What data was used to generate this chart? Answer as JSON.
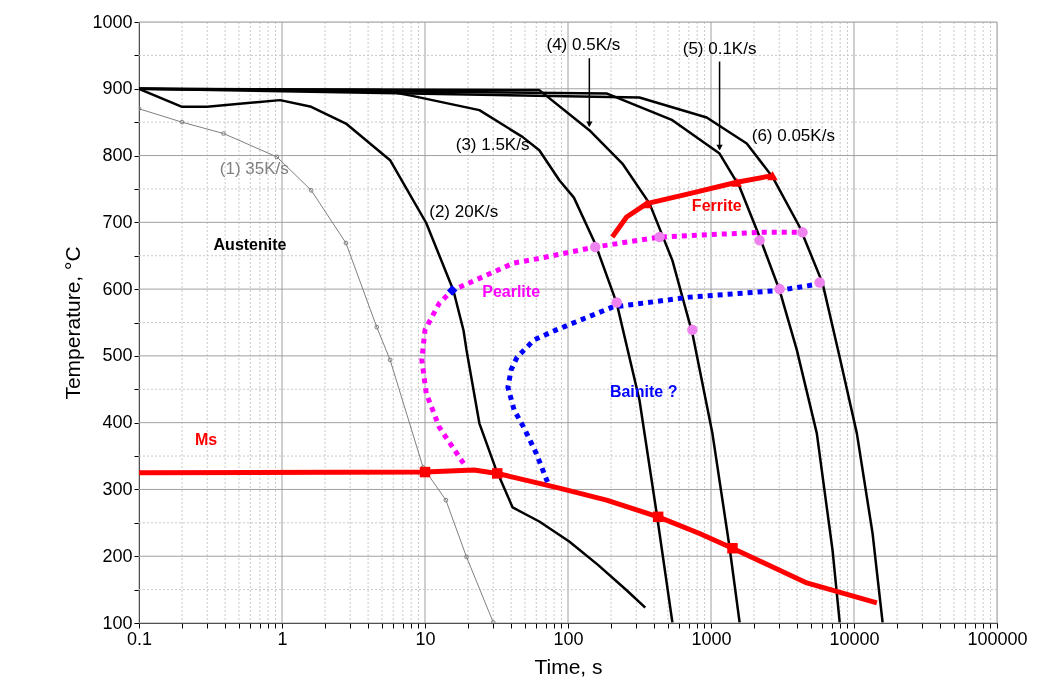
{
  "chart_data": {
    "type": "line",
    "xlabel": "Time, s",
    "ylabel": "Temperature, °C",
    "log": "x",
    "grid": true,
    "xlim": [
      0.1,
      100000
    ],
    "ylim": [
      100,
      1000
    ],
    "xticks": [
      0.1,
      {
        "value": 0.2,
        "label": null
      },
      {
        "value": 0.3,
        "label": null
      },
      {
        "value": 0.4,
        "label": null
      },
      {
        "value": 0.5,
        "label": null
      },
      {
        "value": 0.6,
        "label": null
      },
      {
        "value": 0.7,
        "label": null
      },
      {
        "value": 0.8,
        "label": null
      },
      {
        "value": 0.9,
        "label": null
      },
      1,
      {
        "value": 2,
        "label": null
      },
      {
        "value": 3,
        "label": null
      },
      {
        "value": 4,
        "label": null
      },
      {
        "value": 5,
        "label": null
      },
      {
        "value": 6,
        "label": null
      },
      {
        "value": 7,
        "label": null
      },
      {
        "value": 8,
        "label": null
      },
      {
        "value": 9,
        "label": null
      },
      10,
      {
        "value": 20,
        "label": null
      },
      {
        "value": 30,
        "label": null
      },
      {
        "value": 40,
        "label": null
      },
      {
        "value": 50,
        "label": null
      },
      {
        "value": 60,
        "label": null
      },
      {
        "value": 70,
        "label": null
      },
      {
        "value": 80,
        "label": null
      },
      {
        "value": 90,
        "label": null
      },
      100,
      {
        "value": 200,
        "label": null
      },
      {
        "value": 300,
        "label": null
      },
      {
        "value": 400,
        "label": null
      },
      {
        "value": 500,
        "label": null
      },
      {
        "value": 600,
        "label": null
      },
      {
        "value": 700,
        "label": null
      },
      {
        "value": 800,
        "label": null
      },
      {
        "value": 900,
        "label": null
      },
      1000,
      {
        "value": 2000,
        "label": null
      },
      {
        "value": 3000,
        "label": null
      },
      {
        "value": 4000,
        "label": null
      },
      {
        "value": 5000,
        "label": null
      },
      {
        "value": 6000,
        "label": null
      },
      {
        "value": 7000,
        "label": null
      },
      {
        "value": 8000,
        "label": null
      },
      {
        "value": 9000,
        "label": null
      },
      10000,
      {
        "value": 20000,
        "label": null
      },
      {
        "value": 30000,
        "label": null
      },
      {
        "value": 40000,
        "label": null
      },
      {
        "value": 50000,
        "label": null
      },
      {
        "value": 60000,
        "label": null
      },
      {
        "value": 70000,
        "label": null
      },
      {
        "value": 80000,
        "label": null
      },
      {
        "value": 90000,
        "label": null
      },
      100000
    ],
    "yticks": [
      100,
      {
        "value": 150,
        "label": null
      },
      200,
      {
        "value": 250,
        "label": null
      },
      300,
      {
        "value": 350,
        "label": null
      },
      400,
      {
        "value": 450,
        "label": null
      },
      500,
      {
        "value": 550,
        "label": null
      },
      600,
      {
        "value": 650,
        "label": null
      },
      700,
      {
        "value": 750,
        "label": null
      },
      800,
      {
        "value": 850,
        "label": null
      },
      900,
      {
        "value": 950,
        "label": null
      },
      1000
    ],
    "annotations": [
      "Austenite"
    ],
    "series": [
      {
        "name": "(1) 35K/s",
        "color": "#808080",
        "marker": "circle",
        "x": [
          0.1,
          0.2,
          0.39,
          0.92,
          1.6,
          2.8,
          4.6,
          5.7,
          9.7,
          14,
          19.5,
          30
        ],
        "values": [
          870,
          850,
          833,
          798,
          748,
          669,
          543,
          494,
          333,
          284,
          199,
          101
        ]
      },
      {
        "name": "(2) 20K/s",
        "color": "#000000",
        "x": [
          0.1,
          0.2,
          0.3,
          0.97,
          1.6,
          2.8,
          5.7,
          10.2,
          15.8,
          18.6,
          19.5,
          24,
          31,
          41,
          63,
          102,
          162,
          257,
          347
        ],
        "values": [
          900,
          873,
          873,
          883,
          873,
          848,
          793,
          699,
          598,
          538,
          509,
          399,
          333,
          273,
          252,
          222,
          187,
          149,
          123
        ]
      },
      {
        "name": "(3) 1.5K/s",
        "color": "#000000",
        "x": [
          0.1,
          5,
          8.3,
          24,
          48,
          63,
          87,
          110,
          155,
          219,
          316,
          417,
          537
        ],
        "values": [
          900,
          898,
          889,
          868,
          828,
          808,
          763,
          737,
          668,
          579,
          434,
          264,
          101
        ]
      },
      {
        "name": "(4) 0.5K/s",
        "color": "#000000",
        "x": [
          0.1,
          63,
          141,
          240,
          372,
          537,
          708,
          741,
          1023,
          1349,
          1585
        ],
        "values": [
          900,
          898,
          838,
          788,
          728,
          643,
          549,
          534,
          384,
          213,
          101
        ]
      },
      {
        "name": "(5) 0.1K/s",
        "color": "#000000",
        "x": [
          0.1,
          186,
          537,
          1148,
          1585,
          2188,
          3020,
          3981,
          5495,
          7079,
          7943
        ],
        "values": [
          900,
          893,
          853,
          803,
          753,
          678,
          598,
          509,
          384,
          209,
          101
        ]
      },
      {
        "name": "(6) 0.05K/s",
        "color": "#000000",
        "x": [
          0.1,
          316,
          933,
          1778,
          2692,
          4169,
          6026,
          7943,
          10471,
          13490,
          15849
        ],
        "values": [
          900,
          887,
          857,
          818,
          768,
          693,
          609,
          498,
          384,
          234,
          101
        ]
      },
      {
        "name": "Ms",
        "color": "#ff0000",
        "x": [
          0.1,
          10,
          22,
          32,
          87,
          186,
          427,
          832,
          1413,
          4677,
          14454
        ],
        "values": [
          325,
          326,
          329,
          324,
          302,
          284,
          259,
          234,
          212,
          160,
          130
        ]
      },
      {
        "name": "Ferrite",
        "color": "#ff0000",
        "x": [
          204,
          257,
          355,
          708,
          1514,
          2692
        ],
        "values": [
          678,
          708,
          728,
          743,
          760,
          770
        ]
      },
      {
        "name": "Pearlite",
        "color": "#ff00ff",
        "line_style": "dotted",
        "x": [
          18.6,
          12.6,
          10.2,
          9.5,
          10,
          12.6,
          15.5,
          41.7,
          63,
          155,
          437,
          2188,
          4365
        ],
        "values": [
          339,
          393,
          444,
          494,
          539,
          579,
          598,
          639,
          646,
          663,
          678,
          685,
          685
        ]
      },
      {
        "name": "Bainite ?",
        "color": "#0000ff",
        "line_style": "dotted",
        "x": [
          72,
          71,
          60,
          49,
          42,
          38,
          40,
          44,
          58,
          83,
          204,
          708,
          3020,
          5754
        ],
        "values": [
          311,
          314,
          354,
          393,
          419,
          453,
          479,
          498,
          524,
          539,
          573,
          588,
          598,
          608
        ]
      },
      {
        "type": "scatter",
        "color": "#ff0000",
        "marker": "square",
        "x": [
          10,
          32,
          427,
          1413
        ],
        "values": [
          326,
          324,
          259,
          212
        ]
      },
      {
        "type": "scatter",
        "color": "#ff0000",
        "marker": "triangle",
        "x": [
          355,
          1514,
          2692
        ],
        "values": [
          728,
          760,
          770
        ]
      },
      {
        "type": "scatter",
        "color": "#ee82ee",
        "marker": "circle",
        "x": [
          155,
          437,
          2188,
          4365,
          219,
          741,
          3020,
          5754
        ],
        "values": [
          663,
          678,
          673,
          685,
          580,
          539,
          600,
          610
        ]
      },
      {
        "type": "scatter",
        "color": "#0000ff",
        "marker": "diamond",
        "x": [
          15.5
        ],
        "values": [
          598
        ]
      }
    ]
  }
}
